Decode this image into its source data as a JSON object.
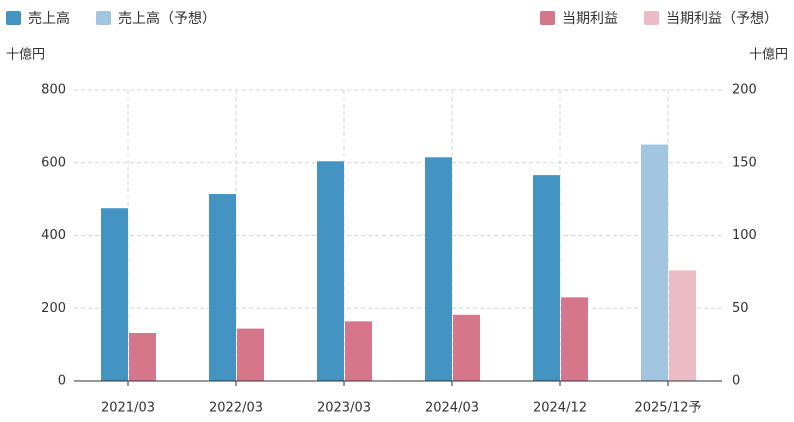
{
  "chart_data": {
    "type": "bar",
    "y_label": "十億円",
    "y2_label": "十億円",
    "categories": [
      "2021/03",
      "2022/03",
      "2023/03",
      "2024/03",
      "2024/12",
      "2025/12予"
    ],
    "series": [
      {
        "name": "売上高",
        "color": "#4393c3",
        "values": [
          475,
          514,
          604,
          615,
          566,
          null
        ]
      },
      {
        "name": "売上高（予想）",
        "color": "#a3c6e0",
        "values": [
          null,
          null,
          null,
          null,
          null,
          650
        ]
      },
      {
        "name": "当期利益",
        "color": "#d6768a",
        "axis": "y2",
        "values": [
          33,
          36,
          41,
          45.5,
          57.5,
          null
        ]
      },
      {
        "name": "当期利益（予想）",
        "color": "#ebbcc6",
        "axis": "y2",
        "values": [
          null,
          null,
          null,
          null,
          null,
          76
        ]
      }
    ],
    "ylim": [
      0,
      800
    ],
    "yticks": [
      0,
      200,
      400,
      600,
      800
    ],
    "y2lim": [
      0,
      200
    ],
    "y2ticks": [
      0,
      50,
      100,
      150,
      200
    ],
    "grid": true
  }
}
